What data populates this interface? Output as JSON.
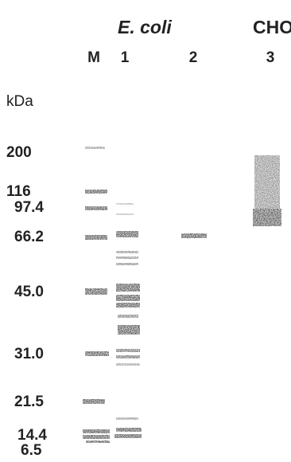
{
  "header": {
    "groups": [
      "E. coli",
      "CHO"
    ],
    "lanes": [
      "M",
      "1",
      "2",
      "3"
    ]
  },
  "unit": "kDa",
  "markers": [
    "200",
    "116",
    "97.4",
    "66.2",
    "45.0",
    "31.0",
    "21.5",
    "14.4",
    "6.5"
  ]
}
